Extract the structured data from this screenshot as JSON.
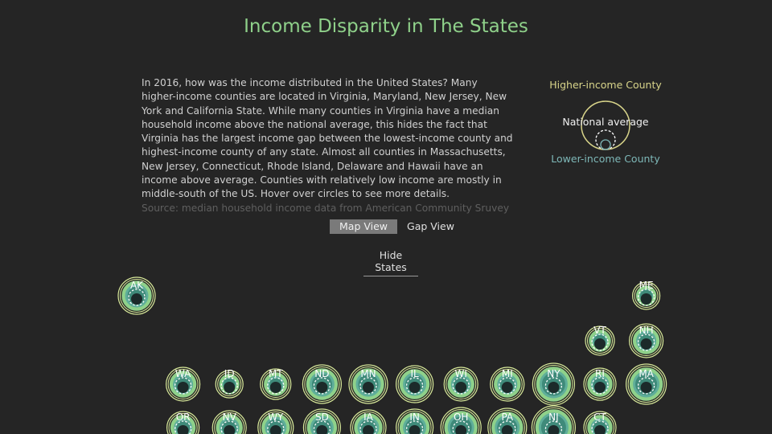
{
  "page": {
    "title": "Income Disparity in The States",
    "intro": "In 2016, how was the income distributed in the United States? Many higher-income counties are located in Virginia, Maryland, New Jersey, New York and California State. While many counties in Virginia have a median household income above the national average, this hides the fact that Virginia has the largest income gap between the lowest-income county and highest-income county of any state. Almost all counties in Massachusetts, New Jersey, Connecticut, Rhode Island, Delaware and Hawaii have an income above average. Counties with relatively low income are mostly in middle-south of the US. Hover over circles to see more details.",
    "source": "Source: median household income data from American Community Sruvey"
  },
  "legend": {
    "high_label": "Higher-income County",
    "avg_label": "National average",
    "low_label": "Lower-income County",
    "colors": {
      "high": "#d8d48a",
      "low": "#7eb8b8",
      "avg": "#ffffff"
    }
  },
  "controls": {
    "map_view_label": "Map View",
    "gap_view_label": "Gap View",
    "active_view": "Map View",
    "hide_states_label": "Hide States"
  },
  "colors": {
    "background": "#252525",
    "title": "#8fd18a",
    "ring_outer": "#d8e99a",
    "ring_mid": "#8fd18a",
    "ring_inner": "#5fae9a",
    "core": "#1c2a2a"
  },
  "states": [
    {
      "abbr": "AK",
      "row": 0,
      "col": 0,
      "outer": 23
    },
    {
      "abbr": "ME",
      "row": 0,
      "col": 11,
      "outer": 17
    },
    {
      "abbr": "VT",
      "row": 1,
      "col": 10,
      "outer": 18
    },
    {
      "abbr": "NH",
      "row": 1,
      "col": 11,
      "outer": 21
    },
    {
      "abbr": "WA",
      "row": 2,
      "col": 1,
      "outer": 21
    },
    {
      "abbr": "ID",
      "row": 2,
      "col": 2,
      "outer": 17
    },
    {
      "abbr": "MT",
      "row": 2,
      "col": 3,
      "outer": 19
    },
    {
      "abbr": "ND",
      "row": 2,
      "col": 4,
      "outer": 24
    },
    {
      "abbr": "MN",
      "row": 2,
      "col": 5,
      "outer": 24
    },
    {
      "abbr": "IL",
      "row": 2,
      "col": 6,
      "outer": 23
    },
    {
      "abbr": "WI",
      "row": 2,
      "col": 7,
      "outer": 21
    },
    {
      "abbr": "MI",
      "row": 2,
      "col": 8,
      "outer": 21
    },
    {
      "abbr": "NY",
      "row": 2,
      "col": 9,
      "outer": 26
    },
    {
      "abbr": "RI",
      "row": 2,
      "col": 10,
      "outer": 20
    },
    {
      "abbr": "MA",
      "row": 2,
      "col": 11,
      "outer": 25
    },
    {
      "abbr": "OR",
      "row": 3,
      "col": 1,
      "outer": 20
    },
    {
      "abbr": "NV",
      "row": 3,
      "col": 2,
      "outer": 21
    },
    {
      "abbr": "WY",
      "row": 3,
      "col": 3,
      "outer": 22
    },
    {
      "abbr": "SD",
      "row": 3,
      "col": 4,
      "outer": 23
    },
    {
      "abbr": "IA",
      "row": 3,
      "col": 5,
      "outer": 22
    },
    {
      "abbr": "IN",
      "row": 3,
      "col": 6,
      "outer": 23
    },
    {
      "abbr": "OH",
      "row": 3,
      "col": 7,
      "outer": 25
    },
    {
      "abbr": "PA",
      "row": 3,
      "col": 8,
      "outer": 24
    },
    {
      "abbr": "NJ",
      "row": 3,
      "col": 9,
      "outer": 27
    },
    {
      "abbr": "CT",
      "row": 3,
      "col": 10,
      "outer": 20
    }
  ]
}
